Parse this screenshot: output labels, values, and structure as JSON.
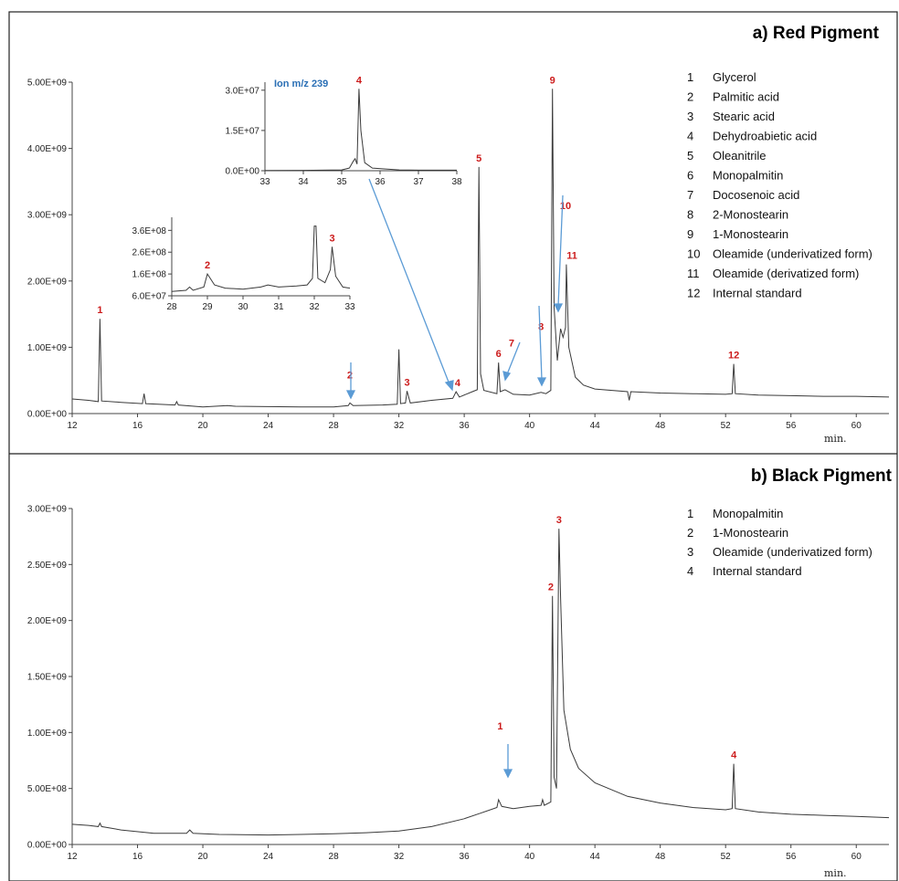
{
  "chart_data": [
    {
      "type": "line",
      "title": "a) Red Pigment",
      "xunit": "min.",
      "xlim": [
        12,
        62
      ],
      "xticks": [
        12,
        16,
        20,
        24,
        28,
        32,
        36,
        40,
        44,
        48,
        52,
        56,
        60
      ],
      "ylim": [
        0,
        5000000000
      ],
      "yticks": [
        "0.00E+00",
        "1.00E+09",
        "2.00E+09",
        "3.00E+09",
        "4.00E+09",
        "5.00E+09"
      ],
      "yticks_values": [
        0,
        1000000000,
        2000000000,
        3000000000,
        4000000000,
        5000000000
      ],
      "trace": [
        [
          12,
          220000000.0
        ],
        [
          13,
          200000000.0
        ],
        [
          13.6,
          180000000.0
        ],
        [
          13.7,
          1430000000.0
        ],
        [
          13.8,
          190000000.0
        ],
        [
          15,
          170000000.0
        ],
        [
          16.3,
          150000000.0
        ],
        [
          16.4,
          300000000.0
        ],
        [
          16.5,
          150000000.0
        ],
        [
          18.3,
          130000000.0
        ],
        [
          18.4,
          180000000.0
        ],
        [
          18.5,
          130000000.0
        ],
        [
          20,
          100000000.0
        ],
        [
          21.5,
          120000000.0
        ],
        [
          22,
          110000000.0
        ],
        [
          24,
          105000000.0
        ],
        [
          26,
          100000000.0
        ],
        [
          28,
          100000000.0
        ],
        [
          28.9,
          120000000.0
        ],
        [
          29.0,
          160000000.0
        ],
        [
          29.2,
          120000000.0
        ],
        [
          31,
          130000000.0
        ],
        [
          31.9,
          140000000.0
        ],
        [
          32.0,
          970000000.0
        ],
        [
          32.1,
          150000000.0
        ],
        [
          32.4,
          160000000.0
        ],
        [
          32.5,
          340000000.0
        ],
        [
          32.7,
          160000000.0
        ],
        [
          34,
          200000000.0
        ],
        [
          35.3,
          230000000.0
        ],
        [
          35.5,
          330000000.0
        ],
        [
          35.7,
          250000000.0
        ],
        [
          36.5,
          330000000.0
        ],
        [
          36.8,
          360000000.0
        ],
        [
          36.9,
          3720000000.0
        ],
        [
          37.0,
          600000000.0
        ],
        [
          37.2,
          350000000.0
        ],
        [
          38.0,
          300000000.0
        ],
        [
          38.1,
          770000000.0
        ],
        [
          38.2,
          330000000.0
        ],
        [
          38.5,
          360000000.0
        ],
        [
          39,
          290000000.0
        ],
        [
          40,
          280000000.0
        ],
        [
          40.7,
          320000000.0
        ],
        [
          41,
          300000000.0
        ],
        [
          41.3,
          350000000.0
        ],
        [
          41.4,
          4900000000.0
        ],
        [
          41.5,
          1600000000.0
        ],
        [
          41.7,
          800000000.0
        ],
        [
          41.9,
          1280000000.0
        ],
        [
          42.05,
          1150000000.0
        ],
        [
          42.2,
          1300000000.0
        ],
        [
          42.25,
          2250000000.0
        ],
        [
          42.4,
          1000000000.0
        ],
        [
          42.8,
          550000000.0
        ],
        [
          43.3,
          430000000.0
        ],
        [
          44,
          370000000.0
        ],
        [
          46,
          330000000.0
        ],
        [
          46.1,
          200000000.0
        ],
        [
          46.2,
          330000000.0
        ],
        [
          48,
          310000000.0
        ],
        [
          50,
          300000000.0
        ],
        [
          52,
          290000000.0
        ],
        [
          52.4,
          300000000.0
        ],
        [
          52.5,
          750000000.0
        ],
        [
          52.6,
          300000000.0
        ],
        [
          54,
          280000000.0
        ],
        [
          56,
          270000000.0
        ],
        [
          58,
          260000000.0
        ],
        [
          60,
          260000000.0
        ],
        [
          62,
          250000000.0
        ]
      ],
      "peak_labels": [
        {
          "label": "1",
          "x": 13.7,
          "y": 1430000000.0
        },
        {
          "label": "2",
          "x": 29.0,
          "y": 450000000.0
        },
        {
          "label": "3",
          "x": 32.5,
          "y": 340000000.0
        },
        {
          "label": "4",
          "x": 35.6,
          "y": 330000000.0
        },
        {
          "label": "5",
          "x": 36.9,
          "y": 3720000000.0
        },
        {
          "label": "6",
          "x": 38.1,
          "y": 770000000.0
        },
        {
          "label": "7",
          "x": 38.9,
          "y": 930000000.0
        },
        {
          "label": "8",
          "x": 40.7,
          "y": 1180000000.0
        },
        {
          "label": "9",
          "x": 41.4,
          "y": 4900000000.0
        },
        {
          "label": "10",
          "x": 42.2,
          "y": 3000000000.0
        },
        {
          "label": "11",
          "x": 42.6,
          "y": 2250000000.0
        },
        {
          "label": "12",
          "x": 52.5,
          "y": 750000000.0
        }
      ],
      "legend": [
        {
          "num": "1",
          "name": "Glycerol"
        },
        {
          "num": "2",
          "name": "Palmitic acid"
        },
        {
          "num": "3",
          "name": "Stearic acid"
        },
        {
          "num": "4",
          "name": "Dehydroabietic acid"
        },
        {
          "num": "5",
          "name": "Oleanitrile"
        },
        {
          "num": "6",
          "name": "Monopalmitin"
        },
        {
          "num": "7",
          "name": "Docosenoic acid"
        },
        {
          "num": "8",
          "name": "2-Monostearin"
        },
        {
          "num": "9",
          "name": "1-Monostearin"
        },
        {
          "num": "10",
          "name": "Oleamide (underivatized form)"
        },
        {
          "num": "11",
          "name": "Oleamide (derivatized form)"
        },
        {
          "num": "12",
          "name": "Internal standard"
        }
      ],
      "legend_position": "top-right",
      "insets": [
        {
          "annotation": "Ion m/z 239",
          "xlim": [
            33,
            38
          ],
          "xticks": [
            33,
            34,
            35,
            36,
            37,
            38
          ],
          "ylim": [
            0,
            33000000
          ],
          "yticks": [
            "0.0E+00",
            "1.5E+07",
            "3.0E+07"
          ],
          "yticks_values": [
            0,
            15000000,
            30000000
          ],
          "trace": [
            [
              33,
              100000.0
            ],
            [
              34,
              150000.0
            ],
            [
              35,
              300000.0
            ],
            [
              35.2,
              1000000.0
            ],
            [
              35.3,
              3500000.0
            ],
            [
              35.35,
              4500000.0
            ],
            [
              35.4,
              2500000.0
            ],
            [
              35.45,
              30500000.0
            ],
            [
              35.5,
              15000000.0
            ],
            [
              35.6,
              3000000.0
            ],
            [
              35.8,
              1000000.0
            ],
            [
              36.5,
              300000.0
            ],
            [
              37,
              200000.0
            ],
            [
              38,
              200000.0
            ]
          ],
          "peak_labels": [
            {
              "label": "4",
              "x": 35.45,
              "y": 30500000.0
            }
          ]
        },
        {
          "xlim": [
            28,
            33
          ],
          "xticks": [
            28,
            29,
            30,
            31,
            32,
            33
          ],
          "ylim": [
            60000000,
            420000000
          ],
          "yticks": [
            "6.0E+07",
            "1.6E+08",
            "2.6E+08",
            "3.6E+08"
          ],
          "yticks_values": [
            60000000,
            160000000,
            260000000,
            360000000
          ],
          "trace": [
            [
              28,
              80000000.0
            ],
            [
              28.4,
              85000000.0
            ],
            [
              28.5,
              100000000.0
            ],
            [
              28.6,
              85000000.0
            ],
            [
              28.9,
              100000000.0
            ],
            [
              29.0,
              160000000.0
            ],
            [
              29.2,
              110000000.0
            ],
            [
              29.5,
              95000000.0
            ],
            [
              30,
              90000000.0
            ],
            [
              30.5,
              100000000.0
            ],
            [
              30.7,
              110000000.0
            ],
            [
              31,
              100000000.0
            ],
            [
              31.5,
              105000000.0
            ],
            [
              31.8,
              110000000.0
            ],
            [
              31.95,
              140000000.0
            ],
            [
              32.0,
              380000000.0
            ],
            [
              32.05,
              380000000.0
            ],
            [
              32.1,
              140000000.0
            ],
            [
              32.3,
              120000000.0
            ],
            [
              32.45,
              180000000.0
            ],
            [
              32.5,
              285000000.0
            ],
            [
              32.6,
              150000000.0
            ],
            [
              32.8,
              100000000.0
            ],
            [
              33,
              95000000.0
            ]
          ],
          "peak_labels": [
            {
              "label": "2",
              "x": 29.0,
              "y": 160000000.0
            },
            {
              "label": "3",
              "x": 32.5,
              "y": 285000000.0
            }
          ]
        }
      ]
    },
    {
      "type": "line",
      "title": "b) Black Pigment",
      "xunit": "min.",
      "xlim": [
        12,
        62
      ],
      "xticks": [
        12,
        16,
        20,
        24,
        28,
        32,
        36,
        40,
        44,
        48,
        52,
        56,
        60
      ],
      "ylim": [
        0,
        3000000000
      ],
      "yticks": [
        "0.00E+00",
        "5.00E+08",
        "1.00E+09",
        "1.50E+09",
        "2.00E+09",
        "2.50E+09",
        "3.00E+09"
      ],
      "yticks_values": [
        0,
        500000000,
        1000000000,
        1500000000,
        2000000000,
        2500000000,
        3000000000
      ],
      "trace": [
        [
          12,
          180000000.0
        ],
        [
          13,
          170000000.0
        ],
        [
          13.6,
          160000000.0
        ],
        [
          13.7,
          190000000.0
        ],
        [
          13.8,
          160000000.0
        ],
        [
          15,
          130000000.0
        ],
        [
          17,
          100000000.0
        ],
        [
          19,
          100000000.0
        ],
        [
          19.2,
          130000000.0
        ],
        [
          19.4,
          100000000.0
        ],
        [
          21,
          90000000.0
        ],
        [
          24,
          85000000.0
        ],
        [
          26,
          90000000.0
        ],
        [
          28,
          95000000.0
        ],
        [
          30,
          105000000.0
        ],
        [
          32,
          120000000.0
        ],
        [
          34,
          160000000.0
        ],
        [
          36,
          230000000.0
        ],
        [
          37,
          280000000.0
        ],
        [
          38,
          330000000.0
        ],
        [
          38.1,
          400000000.0
        ],
        [
          38.3,
          340000000.0
        ],
        [
          39,
          320000000.0
        ],
        [
          40,
          340000000.0
        ],
        [
          40.7,
          350000000.0
        ],
        [
          40.8,
          400000000.0
        ],
        [
          40.9,
          350000000.0
        ],
        [
          41.3,
          380000000.0
        ],
        [
          41.4,
          2220000000.0
        ],
        [
          41.5,
          600000000.0
        ],
        [
          41.65,
          500000000.0
        ],
        [
          41.8,
          2820000000.0
        ],
        [
          41.9,
          2200000000.0
        ],
        [
          42.1,
          1200000000.0
        ],
        [
          42.5,
          850000000.0
        ],
        [
          43,
          680000000.0
        ],
        [
          44,
          550000000.0
        ],
        [
          46,
          430000000.0
        ],
        [
          48,
          370000000.0
        ],
        [
          50,
          330000000.0
        ],
        [
          52,
          310000000.0
        ],
        [
          52.4,
          320000000.0
        ],
        [
          52.5,
          720000000.0
        ],
        [
          52.6,
          320000000.0
        ],
        [
          54,
          290000000.0
        ],
        [
          56,
          270000000.0
        ],
        [
          58,
          260000000.0
        ],
        [
          60,
          250000000.0
        ],
        [
          62,
          240000000.0
        ]
      ],
      "peak_labels": [
        {
          "label": "1",
          "x": 38.2,
          "y": 980000000.0
        },
        {
          "label": "2",
          "x": 41.3,
          "y": 2220000000.0
        },
        {
          "label": "3",
          "x": 41.8,
          "y": 2820000000.0
        },
        {
          "label": "4",
          "x": 52.5,
          "y": 720000000.0
        }
      ],
      "legend": [
        {
          "num": "1",
          "name": "Monopalmitin"
        },
        {
          "num": "2",
          "name": "1-Monostearin"
        },
        {
          "num": "3",
          "name": "Oleamide (underivatized form)"
        },
        {
          "num": "4",
          "name": "Internal standard"
        }
      ],
      "legend_position": "top-right"
    }
  ],
  "colors": {
    "trace": "#3a3a3a",
    "peak_label": "#cc1b1b",
    "arrow": "#5b9bd5",
    "ion_label": "#2a6fb5",
    "frame": "#222222"
  }
}
